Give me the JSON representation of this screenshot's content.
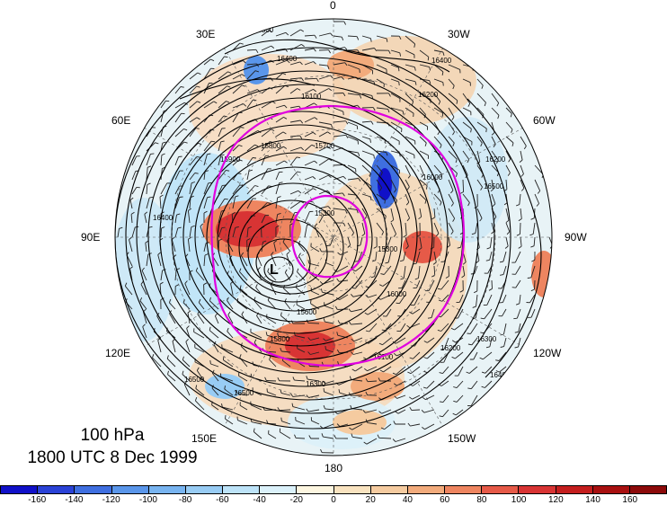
{
  "caption": {
    "level": "100 hPa",
    "time": "1800 UTC 8 Dec 1999"
  },
  "lon_labels": {
    "n": "0",
    "w30": "30W",
    "w60": "60W",
    "w90": "90W",
    "w120": "120W",
    "w150": "150W",
    "s180": "180",
    "e150": "150E",
    "e120": "120E",
    "e90": "90E",
    "e60": "60E",
    "e30": "30E"
  },
  "contour_labels": [
    "16500",
    "16400",
    "16300",
    "16200",
    "16100",
    "16000",
    "15900",
    "15800",
    "15700",
    "15600",
    "15500",
    "15400",
    "15300",
    "15200",
    "15100",
    "15000"
  ],
  "low_marker": "L",
  "colorbar": {
    "colors": [
      "#1010c8",
      "#2a42d6",
      "#3f6fe0",
      "#5a96ea",
      "#78b4f0",
      "#98ccf4",
      "#bde3f8",
      "#dbf1fa",
      "#fdf6e0",
      "#f9e3c0",
      "#f5cba0",
      "#f2ab7c",
      "#ee8560",
      "#e65a48",
      "#d83434",
      "#c41e1e",
      "#a81010",
      "#8c0a0a"
    ],
    "ticks": [
      "-160",
      "-140",
      "-120",
      "-100",
      "-80",
      "-60",
      "-40",
      "-20",
      "0",
      "20",
      "40",
      "60",
      "80",
      "100",
      "120",
      "140",
      "160"
    ]
  }
}
